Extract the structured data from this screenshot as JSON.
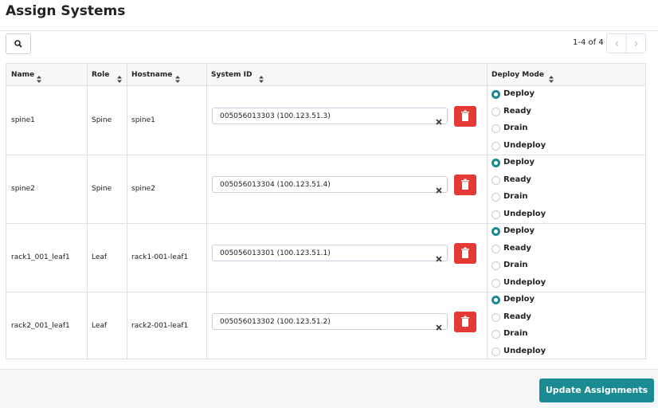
{
  "header": {
    "title": "Assign Systems"
  },
  "pagination": {
    "label": "1-4 of 4"
  },
  "table": {
    "columns": [
      "Name",
      "Role",
      "Hostname",
      "System ID",
      "Deploy Mode"
    ],
    "rows": [
      {
        "name": "spine1",
        "role": "Spine",
        "hostname": "spine1",
        "system_id": "005056013303 (100.123.51.3)",
        "deploy_mode": "Deploy"
      },
      {
        "name": "spine2",
        "role": "Spine",
        "hostname": "spine2",
        "system_id": "005056013304 (100.123.51.4)",
        "deploy_mode": "Deploy"
      },
      {
        "name": "rack1_001_leaf1",
        "role": "Leaf",
        "hostname": "rack1-001-leaf1",
        "system_id": "005056013301 (100.123.51.1)",
        "deploy_mode": "Deploy"
      },
      {
        "name": "rack2_001_leaf1",
        "role": "Leaf",
        "hostname": "rack2-001-leaf1",
        "system_id": "005056013302 (100.123.51.2)",
        "deploy_mode": "Deploy"
      }
    ]
  },
  "deploy_options": [
    "Deploy",
    "Ready",
    "Drain",
    "Undeploy"
  ],
  "footer": {
    "button": "Update Assignments"
  }
}
